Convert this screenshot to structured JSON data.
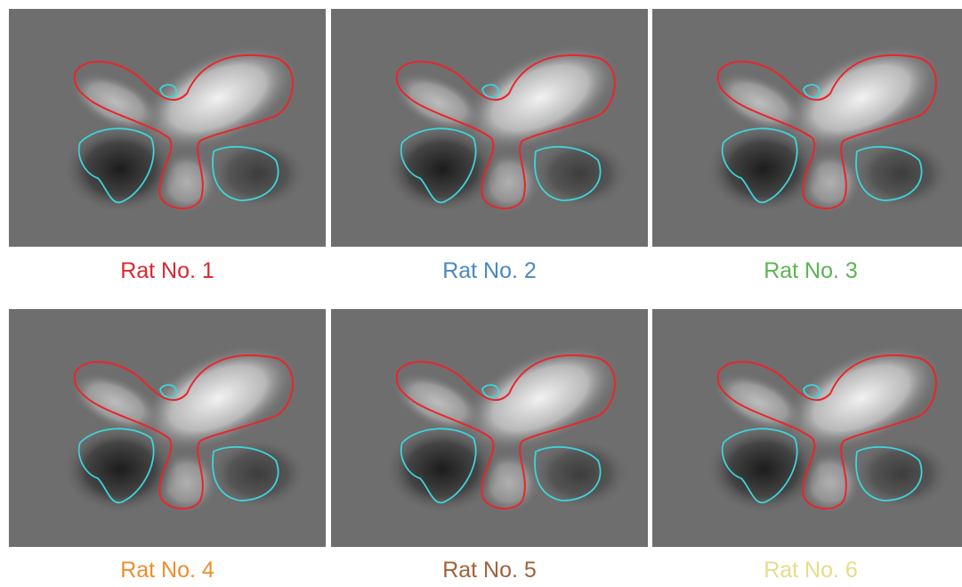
{
  "panels": [
    {
      "label": "Rat No. 1",
      "color": "#d9282e"
    },
    {
      "label": "Rat No. 2",
      "color": "#4a88c0"
    },
    {
      "label": "Rat No. 3",
      "color": "#5cb454"
    },
    {
      "label": "Rat No. 4",
      "color": "#e8902c"
    },
    {
      "label": "Rat No. 5",
      "color": "#a0623a"
    },
    {
      "label": "Rat No. 6",
      "color": "#e6dc8a"
    }
  ]
}
